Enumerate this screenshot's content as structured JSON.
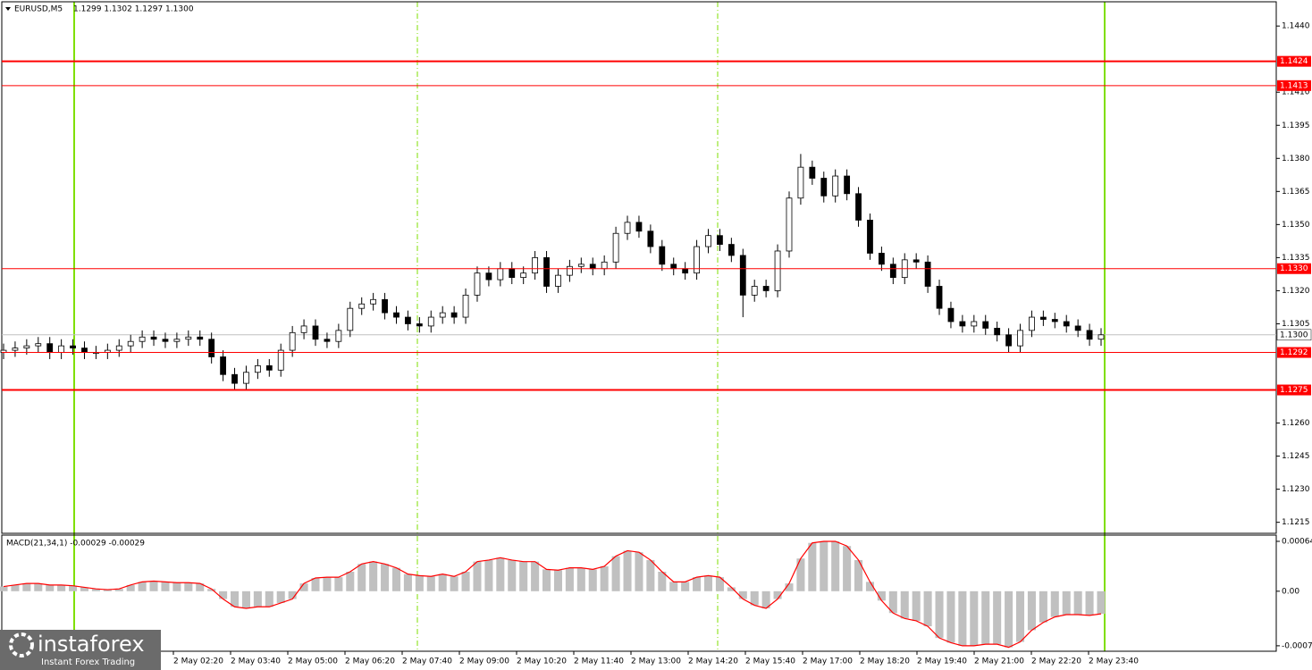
{
  "chart_data": [
    {
      "type": "candlestick",
      "title": "EURUSD,M5",
      "quote": "1.1299 1.1302 1.1297 1.1300",
      "bull_color": "#ffffff",
      "bear_color": "#000000",
      "ylim": [
        1.121,
        1.1451
      ],
      "yticks": [
        {
          "value": 1.144,
          "label": "1.1440"
        },
        {
          "value": 1.141,
          "label": "1.1410"
        },
        1.1395,
        {
          "value": 1.138,
          "label": "1.1380"
        },
        1.1365,
        {
          "value": 1.135,
          "label": "1.1350"
        },
        1.1335,
        {
          "value": 1.132,
          "label": "1.1320"
        },
        1.1305,
        {
          "value": 1.126,
          "label": "1.1260"
        },
        1.1245,
        {
          "value": 1.123,
          "label": "1.1230"
        },
        1.1215
      ],
      "levels": [
        {
          "value": 1.1424,
          "label": "1.1424",
          "color": "#ff0000",
          "width": 2
        },
        {
          "value": 1.1413,
          "label": "1.1413",
          "color": "#ff0000",
          "width": 1
        },
        {
          "value": 1.133,
          "label": "1.1330",
          "color": "#ff0000",
          "width": 1
        },
        {
          "value": 1.1292,
          "label": "1.1292",
          "color": "#ff0000",
          "width": 1
        },
        {
          "value": 1.1275,
          "label": "1.1275",
          "color": "#ff0000",
          "width": 2
        }
      ],
      "last": {
        "value": 1.13,
        "label": "1.1300",
        "color": "#c0c0c0"
      },
      "xticklabels": [
        "2 May 02:20",
        "2 May 03:40",
        "2 May 05:00",
        "2 May 06:20",
        "2 May 07:40",
        "2 May 09:00",
        "2 May 10:20",
        "2 May 11:40",
        "2 May 13:00",
        "2 May 14:20",
        "2 May 15:40",
        "2 May 17:00",
        "2 May 18:20",
        "2 May 19:40",
        "2 May 21:00",
        "2 May 22:20",
        "2 May 23:40"
      ],
      "logo": "instaforex",
      "tagline": "Instant Forex Trading",
      "open": [
        1.1292,
        1.1293,
        1.1294,
        1.1295,
        1.1296,
        1.1292,
        1.1295,
        1.1294,
        1.1292,
        1.1292,
        1.1293,
        1.1295,
        1.1297,
        1.1299,
        1.1298,
        1.1297,
        1.1298,
        1.1299,
        1.1298,
        1.129,
        1.1282,
        1.1278,
        1.1283,
        1.1286,
        1.1284,
        1.1293,
        1.1301,
        1.1304,
        1.1298,
        1.1297,
        1.1302,
        1.1312,
        1.1314,
        1.1316,
        1.131,
        1.1308,
        1.1305,
        1.1304,
        1.1308,
        1.131,
        1.1308,
        1.1318,
        1.1328,
        1.1325,
        1.133,
        1.1326,
        1.1328,
        1.1335,
        1.1322,
        1.1327,
        1.1331,
        1.1332,
        1.133,
        1.1333,
        1.1346,
        1.1351,
        1.1347,
        1.134,
        1.1332,
        1.133,
        1.1328,
        1.134,
        1.1345,
        1.1341,
        1.1336,
        1.1318,
        1.1322,
        1.132,
        1.1338,
        1.1362,
        1.1376,
        1.1371,
        1.1363,
        1.1372,
        1.1364,
        1.1352,
        1.1337,
        1.1332,
        1.1326,
        1.1334,
        1.1333,
        1.1322,
        1.1312,
        1.1306,
        1.1304,
        1.1306,
        1.1303,
        1.13,
        1.1295,
        1.1302,
        1.1308,
        1.1307,
        1.1306,
        1.1304,
        1.1302,
        1.1298
      ],
      "high": [
        1.1296,
        1.1297,
        1.1298,
        1.1299,
        1.1299,
        1.1298,
        1.1298,
        1.1297,
        1.1295,
        1.1296,
        1.1298,
        1.13,
        1.1302,
        1.1302,
        1.1301,
        1.1301,
        1.1302,
        1.1302,
        1.1301,
        1.1293,
        1.1285,
        1.1286,
        1.1289,
        1.1289,
        1.1296,
        1.1304,
        1.1307,
        1.1307,
        1.1301,
        1.1305,
        1.1315,
        1.1317,
        1.1319,
        1.1319,
        1.1313,
        1.1311,
        1.1308,
        1.1311,
        1.1313,
        1.1313,
        1.1321,
        1.1331,
        1.1331,
        1.1333,
        1.1333,
        1.1331,
        1.1338,
        1.1338,
        1.133,
        1.1334,
        1.1335,
        1.1335,
        1.1336,
        1.1349,
        1.1354,
        1.1354,
        1.135,
        1.1343,
        1.1335,
        1.1333,
        1.1343,
        1.1348,
        1.1348,
        1.1344,
        1.1339,
        1.1325,
        1.1325,
        1.1341,
        1.1365,
        1.1382,
        1.1379,
        1.1374,
        1.1375,
        1.1375,
        1.1367,
        1.1355,
        1.134,
        1.1335,
        1.1337,
        1.1337,
        1.1336,
        1.1325,
        1.1315,
        1.1309,
        1.1309,
        1.1309,
        1.1306,
        1.1303,
        1.1305,
        1.1311,
        1.1311,
        1.131,
        1.1309,
        1.1307,
        1.1305,
        1.1303
      ],
      "low": [
        1.1289,
        1.129,
        1.1291,
        1.1292,
        1.1289,
        1.1289,
        1.1291,
        1.1289,
        1.1289,
        1.1289,
        1.129,
        1.1292,
        1.1294,
        1.1295,
        1.1294,
        1.1294,
        1.1295,
        1.1295,
        1.1287,
        1.1279,
        1.1275,
        1.1275,
        1.128,
        1.1281,
        1.1281,
        1.129,
        1.1298,
        1.1295,
        1.1294,
        1.1294,
        1.1299,
        1.1309,
        1.1311,
        1.1307,
        1.1305,
        1.1302,
        1.1301,
        1.1301,
        1.1305,
        1.1305,
        1.1305,
        1.1315,
        1.1322,
        1.1322,
        1.1323,
        1.1323,
        1.1325,
        1.1319,
        1.1319,
        1.1324,
        1.1328,
        1.1327,
        1.1327,
        1.133,
        1.1343,
        1.1344,
        1.1337,
        1.1329,
        1.1327,
        1.1325,
        1.1325,
        1.1337,
        1.1338,
        1.1333,
        1.1308,
        1.1315,
        1.1317,
        1.1317,
        1.1335,
        1.1359,
        1.1368,
        1.136,
        1.136,
        1.1361,
        1.1349,
        1.1334,
        1.1329,
        1.1323,
        1.1323,
        1.133,
        1.1319,
        1.1309,
        1.1303,
        1.1301,
        1.1301,
        1.13,
        1.1297,
        1.1292,
        1.1292,
        1.1299,
        1.1304,
        1.1303,
        1.1301,
        1.1299,
        1.1295,
        1.1295
      ],
      "close": [
        1.1293,
        1.1294,
        1.1295,
        1.1296,
        1.1292,
        1.1295,
        1.1294,
        1.1292,
        1.1292,
        1.1293,
        1.1295,
        1.1297,
        1.1299,
        1.1298,
        1.1297,
        1.1298,
        1.1299,
        1.1298,
        1.129,
        1.1282,
        1.1278,
        1.1283,
        1.1286,
        1.1284,
        1.1293,
        1.1301,
        1.1304,
        1.1298,
        1.1297,
        1.1302,
        1.1312,
        1.1314,
        1.1316,
        1.131,
        1.1308,
        1.1305,
        1.1304,
        1.1308,
        1.131,
        1.1308,
        1.1318,
        1.1328,
        1.1325,
        1.133,
        1.1326,
        1.1328,
        1.1335,
        1.1322,
        1.1327,
        1.1331,
        1.1332,
        1.133,
        1.1333,
        1.1346,
        1.1351,
        1.1347,
        1.134,
        1.1332,
        1.133,
        1.1328,
        1.134,
        1.1345,
        1.1341,
        1.1336,
        1.1318,
        1.1322,
        1.132,
        1.1338,
        1.1362,
        1.1376,
        1.1371,
        1.1363,
        1.1372,
        1.1364,
        1.1352,
        1.1337,
        1.1332,
        1.1326,
        1.1334,
        1.1333,
        1.1322,
        1.1312,
        1.1306,
        1.1304,
        1.1306,
        1.1303,
        1.13,
        1.1295,
        1.1302,
        1.1308,
        1.1307,
        1.1306,
        1.1304,
        1.1302,
        1.1298,
        1.13
      ]
    },
    {
      "type": "bar",
      "title": "MACD(21,34,1) -0.00029 -0.00029",
      "color": "#c0c0c0",
      "line_color": "#ff0000",
      "ylim": [
        -0.00077,
        0.00072
      ],
      "yticks": [
        0.00064,
        {
          "value": 0,
          "label": "0.00"
        },
        -0.0007
      ],
      "values": [
        6e-05,
        8e-05,
        0.0001,
        0.0001,
        8e-05,
        8e-05,
        7e-05,
        5e-05,
        3e-05,
        2e-05,
        3e-05,
        8e-05,
        0.00012,
        0.00013,
        0.00012,
        0.00011,
        0.00011,
        0.0001,
        3e-05,
        -0.0001,
        -0.0002,
        -0.00022,
        -0.0002,
        -0.0002,
        -0.00015,
        -0.0001,
        0.0001,
        0.00017,
        0.00018,
        0.00018,
        0.00025,
        0.00035,
        0.00038,
        0.00035,
        0.0003,
        0.00022,
        0.0002,
        0.00019,
        0.00022,
        0.00019,
        0.00025,
        0.00038,
        0.0004,
        0.00043,
        0.0004,
        0.00038,
        0.00038,
        0.00028,
        0.00027,
        0.0003,
        0.0003,
        0.00028,
        0.00032,
        0.00045,
        0.00052,
        0.0005,
        0.0004,
        0.00025,
        0.00012,
        0.00012,
        0.00018,
        0.0002,
        0.00018,
        5e-05,
        -0.0001,
        -0.00018,
        -0.00022,
        -0.0001,
        0.0001,
        0.00042,
        0.00062,
        0.00064,
        0.00064,
        0.00058,
        0.0004,
        0.00012,
        -0.00012,
        -0.00028,
        -0.00035,
        -0.00038,
        -0.00045,
        -0.0006,
        -0.00066,
        -0.0007,
        -0.0007,
        -0.00068,
        -0.00068,
        -0.00072,
        -0.00065,
        -0.0005,
        -0.0004,
        -0.00033,
        -0.0003,
        -0.0003,
        -0.00031,
        -0.00029
      ]
    }
  ]
}
